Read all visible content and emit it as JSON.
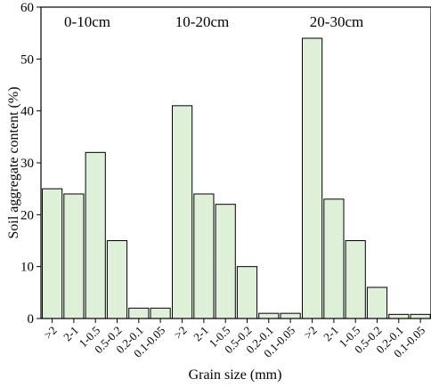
{
  "chart_data": {
    "type": "bar",
    "title": "",
    "xlabel": "Grain size (mm)",
    "ylabel": "Soil aggregate content (%)",
    "ylim": [
      0,
      60
    ],
    "yticks": [
      "0",
      "10",
      "20",
      "30",
      "40",
      "50",
      "60"
    ],
    "bar_fill": "#dff0d8",
    "bar_stroke": "#000000",
    "groups": [
      {
        "label": "0-10cm",
        "categories": [
          ">2",
          "2-1",
          "1-0.5",
          "0.5-0.2",
          "0.2-0.1",
          "0.1-0.05"
        ],
        "values": [
          25,
          24,
          32,
          15,
          2,
          2
        ]
      },
      {
        "label": "10-20cm",
        "categories": [
          ">2",
          "2-1",
          "1-0.5",
          "0.5-0.2",
          "0.2-0.1",
          "0.1-0.05"
        ],
        "values": [
          41,
          24,
          22,
          10,
          1,
          1
        ]
      },
      {
        "label": "20-30cm",
        "categories": [
          ">2",
          "2-1",
          "1-0.5",
          "0.5-0.2",
          "0.2-0.1",
          "0.1-0.05"
        ],
        "values": [
          54,
          23,
          15,
          6,
          0.8,
          0.8
        ]
      }
    ]
  }
}
